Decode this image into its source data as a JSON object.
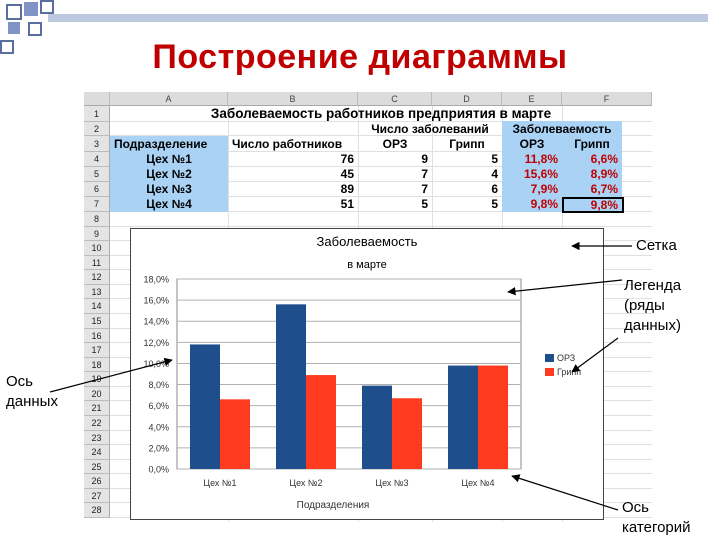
{
  "slide": {
    "title": "Построение диаграммы"
  },
  "sheet": {
    "columns": [
      "A",
      "B",
      "C",
      "D",
      "E",
      "F"
    ],
    "rows": [
      "1",
      "2",
      "3",
      "4",
      "5",
      "6",
      "7",
      "8",
      "9",
      "10",
      "11",
      "12",
      "13",
      "14",
      "15",
      "16",
      "17",
      "18",
      "19",
      "20",
      "21",
      "22",
      "23",
      "24",
      "25",
      "26",
      "27",
      "28"
    ],
    "title": "Заболеваемость работников предприятия в марте",
    "header_top": {
      "sick_count": "Число заболеваний",
      "morbidity": "Заболеваемость"
    },
    "header": {
      "division": "Подразделение",
      "workers": "Число работников",
      "orz": "ОРЗ",
      "flu": "Грипп",
      "orz2": "ОРЗ",
      "flu2": "Грипп"
    },
    "data_rows": [
      {
        "name": "Цех №1",
        "workers": "76",
        "orz": "9",
        "flu": "5",
        "orz_pct": "11,8%",
        "flu_pct": "6,6%"
      },
      {
        "name": "Цех №2",
        "workers": "45",
        "orz": "7",
        "flu": "4",
        "orz_pct": "15,6%",
        "flu_pct": "8,9%"
      },
      {
        "name": "Цех №3",
        "workers": "89",
        "orz": "7",
        "flu": "6",
        "orz_pct": "7,9%",
        "flu_pct": "6,7%"
      },
      {
        "name": "Цех №4",
        "workers": "51",
        "orz": "5",
        "flu": "5",
        "orz_pct": "9,8%",
        "flu_pct": "9,8%"
      }
    ]
  },
  "annotations": {
    "grid": "Сетка",
    "legend_line1": "Легенда",
    "legend_line2": "(ряды",
    "legend_line3": "данных)",
    "data_axis_line1": "Ось",
    "data_axis_line2": "данных",
    "cat_axis_line1": "Ось",
    "cat_axis_line2": "категорий"
  },
  "chart_data": {
    "type": "bar",
    "title": "Заболеваемость",
    "subtitle": "в марте",
    "xlabel": "Подразделения",
    "categories": [
      "Цех №1",
      "Цех №2",
      "Цех №3",
      "Цех №4"
    ],
    "series": [
      {
        "name": "ОРЗ",
        "values": [
          11.8,
          15.6,
          7.9,
          9.8
        ],
        "color": "#1f4e8c"
      },
      {
        "name": "Грипп",
        "values": [
          6.6,
          8.9,
          6.7,
          9.8
        ],
        "color": "#ff3b1f"
      }
    ],
    "ylim": [
      0,
      18
    ],
    "yticks": [
      "0,0%",
      "2,0%",
      "4,0%",
      "6,0%",
      "8,0%",
      "10,0%",
      "12,0%",
      "14,0%",
      "16,0%",
      "18,0%"
    ],
    "grid": true,
    "legend": "right"
  }
}
